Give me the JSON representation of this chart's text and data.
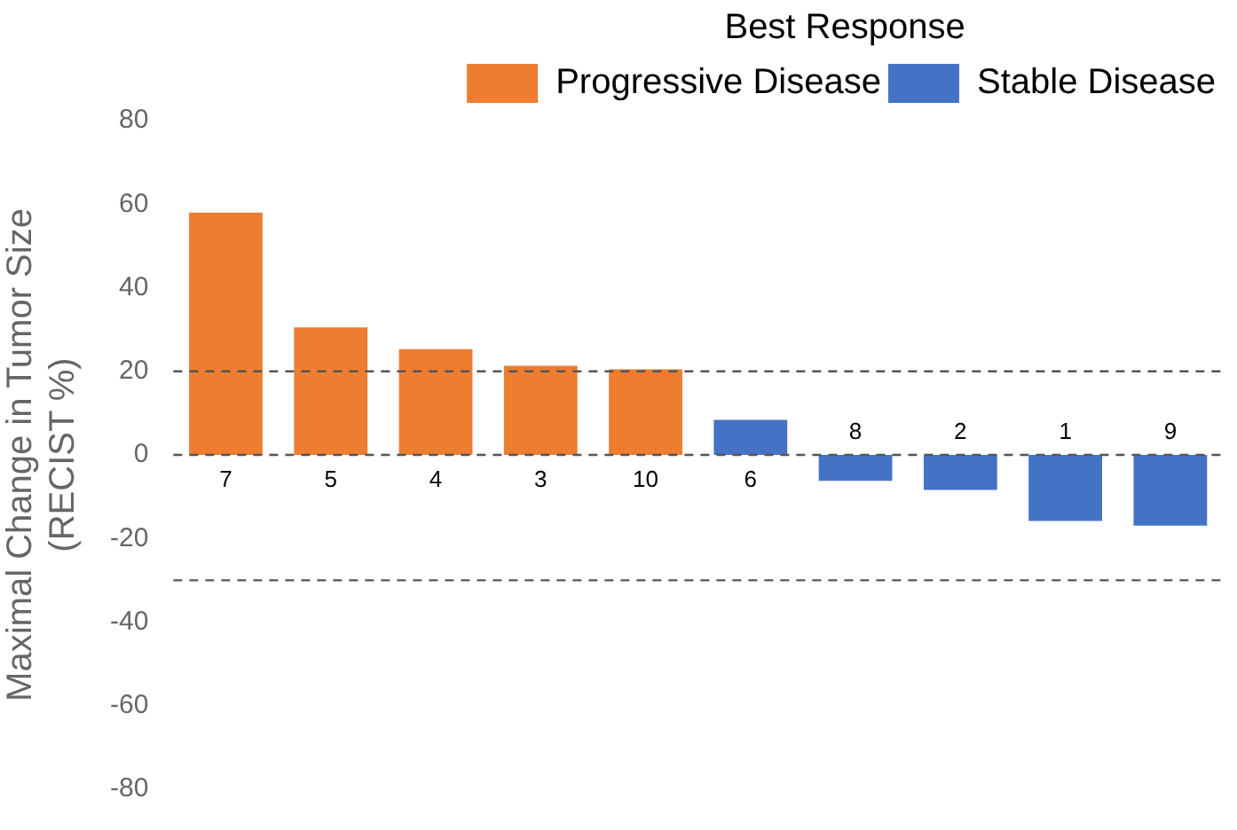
{
  "chart_data": {
    "type": "bar",
    "ylabel": "Maximal Change in Tumor Size\n(RECIST %)",
    "legend_title": "Best Response",
    "legend": "top right",
    "grid": false,
    "categories": [
      "7",
      "5",
      "4",
      "3",
      "10",
      "6",
      "8",
      "2",
      "1",
      "9"
    ],
    "series": [
      {
        "name": "Progressive Disease",
        "color": "#ed7d31",
        "values": [
          58,
          30.5,
          25.3,
          21.3,
          20.5,
          null,
          null,
          null,
          null,
          null
        ]
      },
      {
        "name": "Stable Disease",
        "color": "#4472c4",
        "values": [
          null,
          null,
          null,
          null,
          null,
          8.4,
          -6.2,
          -8.4,
          -15.8,
          -16.9
        ]
      }
    ],
    "ylim": [
      -80,
      80
    ],
    "yticks": [
      -80,
      -60,
      -40,
      -20,
      0,
      20,
      40,
      60,
      80
    ],
    "ref_lines": [
      {
        "axis": "y",
        "value": 20,
        "line_style": "dashed",
        "color": "#555555"
      },
      {
        "axis": "y",
        "value": 0,
        "line_style": "dashed",
        "color": "#555555"
      },
      {
        "axis": "y",
        "value": -30,
        "line_style": "dashed",
        "color": "#555555"
      }
    ]
  }
}
